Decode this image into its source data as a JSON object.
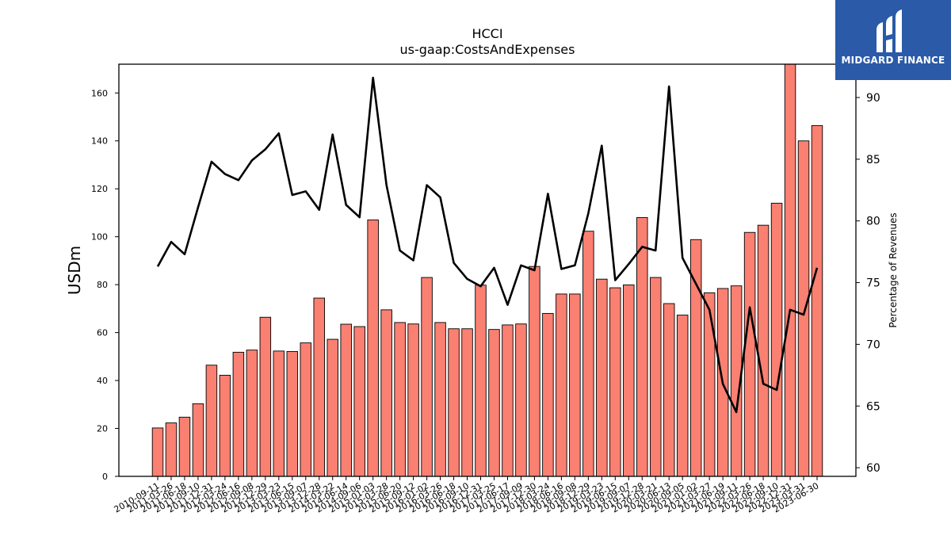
{
  "chart_data": {
    "type": "bar",
    "title": "HCCI",
    "subtitle": "us-gaap:CostsAndExpenses",
    "ylabel": "USDm",
    "y2label": "Percentage of Revenues",
    "ylim": [
      0,
      172
    ],
    "y2lim": [
      59.3,
      92.7
    ],
    "yticks": [
      0,
      20,
      40,
      60,
      80,
      100,
      120,
      140,
      160
    ],
    "y2ticks": [
      60,
      65,
      70,
      75,
      80,
      85,
      90
    ],
    "grid": false,
    "categories": [
      "2010-09-11",
      "2011-03-26",
      "2011-06-18",
      "2011-09-10",
      "2011-12-31",
      "2012-03-24",
      "2012-06-16",
      "2012-09-08",
      "2012-12-29",
      "2013-03-23",
      "2013-06-15",
      "2013-09-07",
      "2013-12-28",
      "2014-03-22",
      "2014-06-14",
      "2014-09-06",
      "2015-01-03",
      "2015-03-28",
      "2015-06-20",
      "2015-09-12",
      "2016-01-02",
      "2016-03-26",
      "2016-06-18",
      "2016-09-10",
      "2016-12-31",
      "2017-03-25",
      "2017-06-17",
      "2017-09-09",
      "2017-12-30",
      "2018-03-24",
      "2018-06-16",
      "2018-09-08",
      "2018-12-29",
      "2019-03-23",
      "2019-06-15",
      "2019-09-07",
      "2019-12-28",
      "2020-03-21",
      "2020-06-13",
      "2020-09-05",
      "2021-01-02",
      "2021-03-27",
      "2021-06-19",
      "2021-09-11",
      "2022-03-26",
      "2022-06-18",
      "2022-09-10",
      "2022-12-31",
      "2023-03-31",
      "2023-06-30"
    ],
    "series": [
      {
        "kind": "bar",
        "color": "#fa8072",
        "values": [
          20.2,
          22.3,
          24.7,
          30.3,
          46.4,
          42.2,
          51.8,
          52.7,
          66.4,
          52.3,
          52.1,
          55.7,
          74.4,
          57.2,
          63.5,
          62.5,
          107.0,
          69.5,
          64.2,
          63.6,
          83.0,
          64.2,
          61.6,
          61.6,
          79.8,
          61.3,
          63.2,
          63.6,
          87.6,
          68.0,
          76.1,
          76.1,
          102.3,
          82.3,
          78.7,
          79.9,
          108.0,
          83.0,
          72.1,
          67.3,
          98.8,
          76.6,
          78.4,
          79.5,
          101.8,
          104.8,
          114.0,
          172.0,
          140.0,
          146.4
        ]
      },
      {
        "kind": "line",
        "color": "#000000",
        "axis": "right",
        "values": [
          76.3,
          78.3,
          77.3,
          81.1,
          84.8,
          83.8,
          83.3,
          84.9,
          85.8,
          87.1,
          82.1,
          82.4,
          80.9,
          87.0,
          81.3,
          80.3,
          91.6,
          82.9,
          77.6,
          76.8,
          82.9,
          81.9,
          76.6,
          75.3,
          74.7,
          76.2,
          73.2,
          76.4,
          76.0,
          82.2,
          76.1,
          76.4,
          80.6,
          86.1,
          75.2,
          76.5,
          77.9,
          77.6,
          90.9,
          77.0,
          74.9,
          72.8,
          66.8,
          64.5,
          73.0,
          66.8,
          66.3,
          72.8,
          72.4,
          76.2
        ]
      }
    ]
  },
  "logo": {
    "text": "MIDGARD FINANCE"
  }
}
